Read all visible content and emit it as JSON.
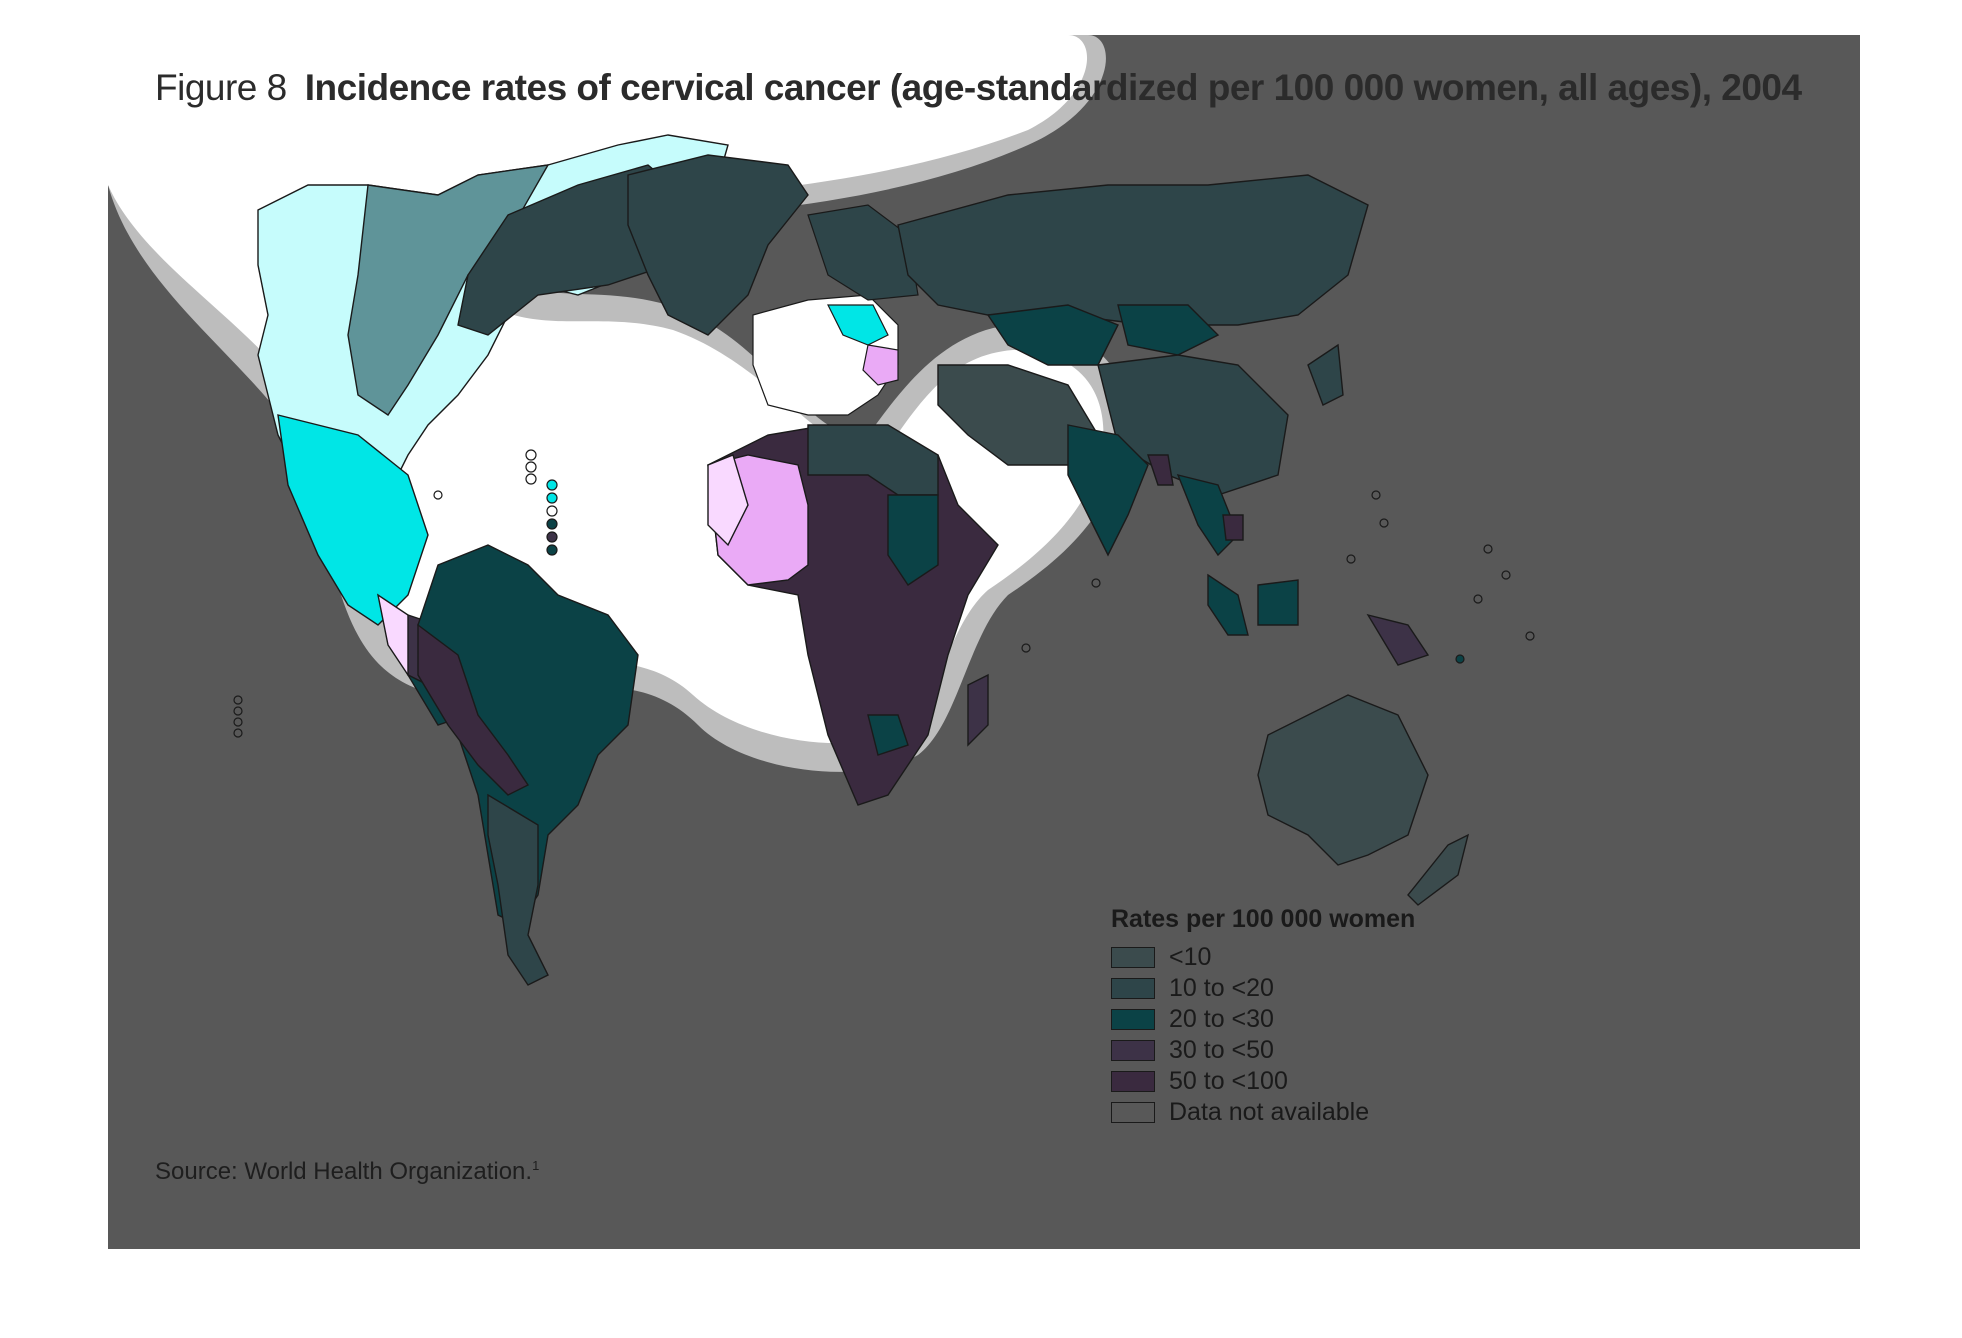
{
  "figure": {
    "label": "Figure 8",
    "title": "Incidence rates of cervical cancer (age-standardized per 100 000 women, all ages), 2004"
  },
  "legend": {
    "title": "Rates per 100 000 women",
    "items": [
      {
        "label": "<10",
        "color": "#3b4b4d"
      },
      {
        "label": "10 to <20",
        "color": "#2e4549"
      },
      {
        "label": "20 to <30",
        "color": "#0b4246"
      },
      {
        "label": "30 to <50",
        "color": "#3d3247"
      },
      {
        "label": "50 to <100",
        "color": "#3a2a3f"
      },
      {
        "label": "Data not available",
        "color": "#585858"
      }
    ]
  },
  "source": {
    "text": "Source: World Health Organization.",
    "note": "1"
  },
  "colors": {
    "background": "#585858",
    "ocean": "#585858",
    "highlight_light_cyan": "#c6fcfc",
    "highlight_cyan": "#00e6e6",
    "highlight_pink": "#f9d9ff",
    "highlight_violet": "#eaaaf6",
    "highlight_teal": "#5f9499"
  }
}
